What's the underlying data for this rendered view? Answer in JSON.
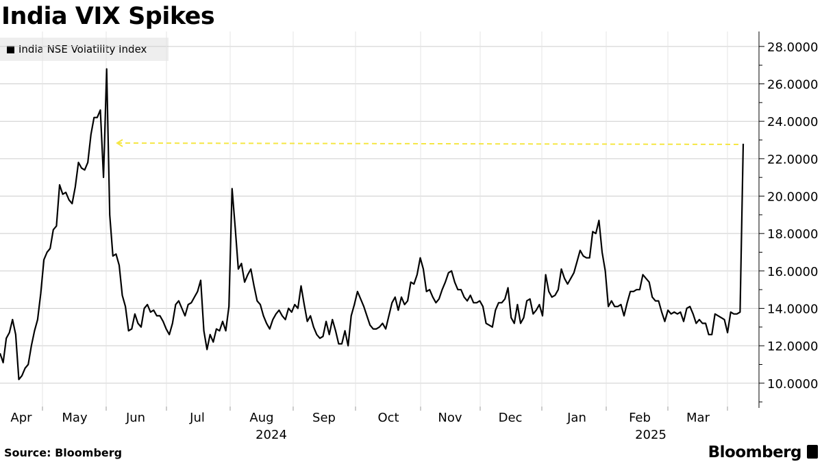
{
  "title": "India VIX Spikes",
  "legend": {
    "label": "India NSE Volatility Index",
    "color": "#000000"
  },
  "footer": {
    "source": "Source: Bloomberg",
    "brand": "Bloomberg"
  },
  "colors": {
    "line": "#000000",
    "reference_line": "#f5e642",
    "grid": "#cccccc"
  },
  "chart_data": {
    "type": "line",
    "title": "India VIX Spikes",
    "series": [
      {
        "name": "India NSE Volatility Index",
        "x_start": "2024-04-01",
        "x_end": "2025-04-07",
        "values": [
          11.6,
          11.1,
          12.4,
          12.7,
          13.4,
          12.6,
          10.2,
          10.4,
          10.8,
          11.0,
          12.0,
          12.8,
          13.4,
          14.8,
          16.6,
          17.0,
          17.2,
          18.2,
          18.4,
          20.6,
          20.1,
          20.2,
          19.8,
          19.6,
          20.5,
          21.8,
          21.5,
          21.4,
          21.8,
          23.3,
          24.2,
          24.2,
          24.6,
          21.0,
          26.8,
          19.0,
          16.8,
          16.9,
          16.3,
          14.7,
          14.1,
          12.8,
          12.9,
          13.7,
          13.2,
          13.0,
          14.0,
          14.2,
          13.8,
          13.9,
          13.6,
          13.6,
          13.3,
          12.9,
          12.6,
          13.2,
          14.2,
          14.4,
          14.0,
          13.6,
          14.2,
          14.3,
          14.6,
          14.9,
          15.5,
          12.8,
          11.8,
          12.6,
          12.2,
          12.9,
          12.8,
          13.3,
          12.8,
          14.1,
          20.4,
          18.3,
          16.1,
          16.4,
          15.4,
          15.8,
          16.1,
          15.2,
          14.4,
          14.2,
          13.6,
          13.2,
          12.9,
          13.4,
          13.7,
          13.9,
          13.6,
          13.4,
          14.0,
          13.8,
          14.2,
          14.0,
          15.2,
          14.2,
          13.3,
          13.6,
          13.0,
          12.6,
          12.4,
          12.5,
          13.3,
          12.6,
          13.4,
          12.8,
          12.1,
          12.1,
          12.8,
          12.0,
          13.6,
          14.2,
          14.9,
          14.5,
          14.1,
          13.6,
          13.1,
          12.9,
          12.9,
          13.0,
          13.2,
          12.9,
          13.6,
          14.3,
          14.6,
          13.9,
          14.6,
          14.2,
          14.4,
          15.4,
          15.3,
          15.8,
          16.7,
          16.1,
          14.9,
          15.0,
          14.6,
          14.3,
          14.5,
          15.0,
          15.4,
          15.9,
          16.0,
          15.4,
          15.0,
          15.0,
          14.6,
          14.4,
          14.7,
          14.3,
          14.3,
          14.4,
          14.1,
          13.2,
          13.1,
          13.0,
          13.9,
          14.3,
          14.3,
          14.5,
          15.1,
          13.5,
          13.2,
          14.2,
          13.2,
          13.5,
          14.4,
          14.5,
          13.7,
          13.9,
          14.2,
          13.6,
          15.8,
          14.9,
          14.6,
          14.7,
          15.0,
          16.1,
          15.6,
          15.3,
          15.6,
          15.9,
          16.5,
          17.1,
          16.8,
          16.7,
          16.7,
          18.1,
          18.0,
          18.7,
          17.0,
          16.0,
          14.1,
          14.4,
          14.1,
          14.1,
          14.2,
          13.6,
          14.3,
          14.9,
          14.9,
          15.0,
          15.0,
          15.8,
          15.6,
          15.4,
          14.6,
          14.4,
          14.4,
          13.8,
          13.3,
          13.9,
          13.7,
          13.8,
          13.7,
          13.8,
          13.3,
          14.0,
          14.1,
          13.7,
          13.2,
          13.4,
          13.2,
          13.2,
          12.6,
          12.6,
          13.7,
          13.6,
          13.5,
          13.4,
          12.7,
          13.8,
          13.7,
          13.7,
          13.8,
          22.8
        ]
      }
    ],
    "reference_line": {
      "value": 22.8,
      "style": "dashed",
      "color": "#f5e642"
    },
    "x_tick_labels": [
      "Apr",
      "May",
      "Jun",
      "Jul",
      "Aug",
      "Sep",
      "Oct",
      "Nov",
      "Dec",
      "Jan",
      "Feb",
      "Mar"
    ],
    "year_labels": [
      "2024",
      "2025"
    ],
    "y_tick_labels": [
      "10.0000",
      "12.0000",
      "14.0000",
      "16.0000",
      "18.0000",
      "20.0000",
      "22.0000",
      "24.0000",
      "26.0000",
      "28.0000"
    ],
    "y_ticks": [
      10,
      12,
      14,
      16,
      18,
      20,
      22,
      24,
      26,
      28
    ],
    "ylim": [
      8.75,
      28.8
    ],
    "y_axis_position": "right",
    "grid": "horizontal",
    "legend_position": "top-left"
  }
}
